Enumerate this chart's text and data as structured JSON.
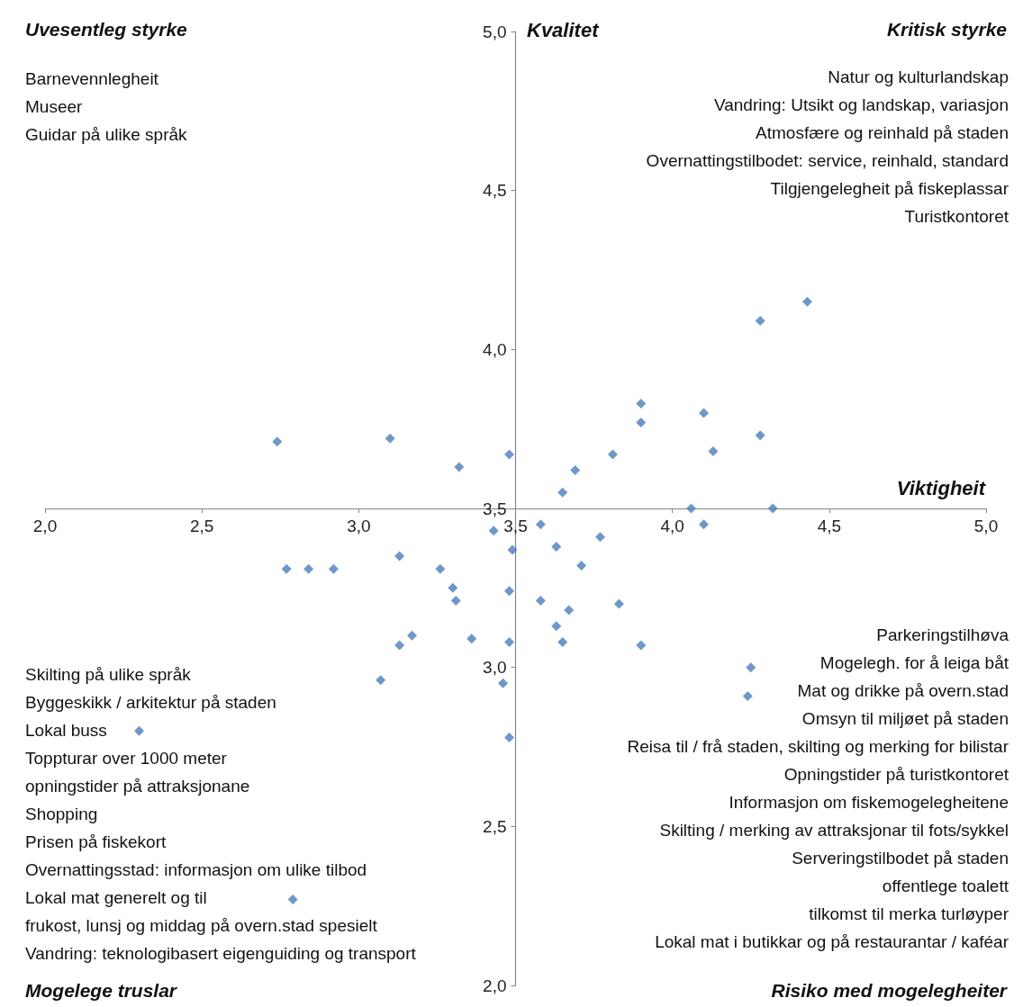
{
  "chart_data": {
    "type": "scatter",
    "xlabel": "Viktigheit",
    "ylabel": "Kvalitet",
    "color": "#4a7ebb",
    "marker": "diamond",
    "grid": false,
    "xlim": [
      2,
      5
    ],
    "ylim": [
      2,
      5
    ],
    "xticks": [
      {
        "value": 2,
        "label": "2,0"
      },
      {
        "value": 2.5,
        "label": "2,5"
      },
      {
        "value": 3,
        "label": "3,0"
      },
      {
        "value": 3.5,
        "label": "3,5"
      },
      {
        "value": 4,
        "label": "4,0"
      },
      {
        "value": 4.5,
        "label": "4,5"
      },
      {
        "value": 5,
        "label": "5,0"
      }
    ],
    "yticks": [
      {
        "value": 2,
        "label": "2,0"
      },
      {
        "value": 2.5,
        "label": "2,5"
      },
      {
        "value": 3,
        "label": "3,0"
      },
      {
        "value": 3.5,
        "label": "3,5"
      },
      {
        "value": 4,
        "label": "4,0"
      },
      {
        "value": 4.5,
        "label": "4,5"
      },
      {
        "value": 5,
        "label": "5,0"
      }
    ],
    "x": [
      2.74,
      3.1,
      3.32,
      3.48,
      3.9,
      3.9,
      4.1,
      4.28,
      4.43,
      4.28,
      4.13,
      3.81,
      3.69,
      3.65,
      4.06,
      4.32,
      4.1,
      3.58,
      3.43,
      3.63,
      3.77,
      3.49,
      3.71,
      2.77,
      2.84,
      2.92,
      3.13,
      3.26,
      3.3,
      3.31,
      3.48,
      3.58,
      3.83,
      3.67,
      3.63,
      3.65,
      3.9,
      3.48,
      3.36,
      3.17,
      3.13,
      3.07,
      3.46,
      4.25,
      4.24,
      3.48,
      2.3,
      2.79
    ],
    "values": [
      3.71,
      3.72,
      3.63,
      3.67,
      3.83,
      3.77,
      3.8,
      4.09,
      4.15,
      3.73,
      3.68,
      3.67,
      3.62,
      3.55,
      3.5,
      3.5,
      3.45,
      3.45,
      3.43,
      3.38,
      3.41,
      3.37,
      3.32,
      3.31,
      3.31,
      3.31,
      3.35,
      3.31,
      3.25,
      3.21,
      3.24,
      3.21,
      3.2,
      3.18,
      3.13,
      3.08,
      3.07,
      3.08,
      3.09,
      3.1,
      3.07,
      2.96,
      2.95,
      3.0,
      2.91,
      2.78,
      2.8,
      2.27
    ],
    "annotations": [
      "Uvesentleg styrke",
      "Kritisk styrke",
      "Mogelege truslar",
      "Risiko med mogelegheiter",
      "Barnevennlegheit\nMuseer\nGuidar på ulike språk",
      "Natur og kulturlandskap\nVandring: Utsikt og landskap, variasjon\nAtmosfære og reinhald på staden\nOvernattingstilbodet: service, reinhald, standard\nTilgjengelegheit på fiskeplassar\nTuristkontoret",
      "Skilting på ulike språk\nByggeskikk / arkitektur på staden\nLokal buss\nToppturar over 1000 meter\nopningstider på attraksjonane\nShopping\nPrisen på fiskekort\nOvernattingsstad: informasjon om ulike tilbod\nLokal mat generelt og til\nfrukost, lunsj og middag på overn.stad spesielt\nVandring: teknologibasert eigenguiding og transport",
      "Parkeringstilhøva\nMogelegh. for å leiga båt\nMat og drikke på overn.stad\nOmsyn til miljøet på staden\nReisa til / frå staden, skilting og merking for bilistar\nOpningstider på turistkontoret\nInformasjon om fiskemogelegheitene\nSkilting / merking av attraksjonar til fots/sykkel\nServeringstilbodet på staden\noffentlege toalett\ntilkomst til merka turløyper\nLokal mat i butikkar og på restaurantar / kaféar"
    ]
  }
}
